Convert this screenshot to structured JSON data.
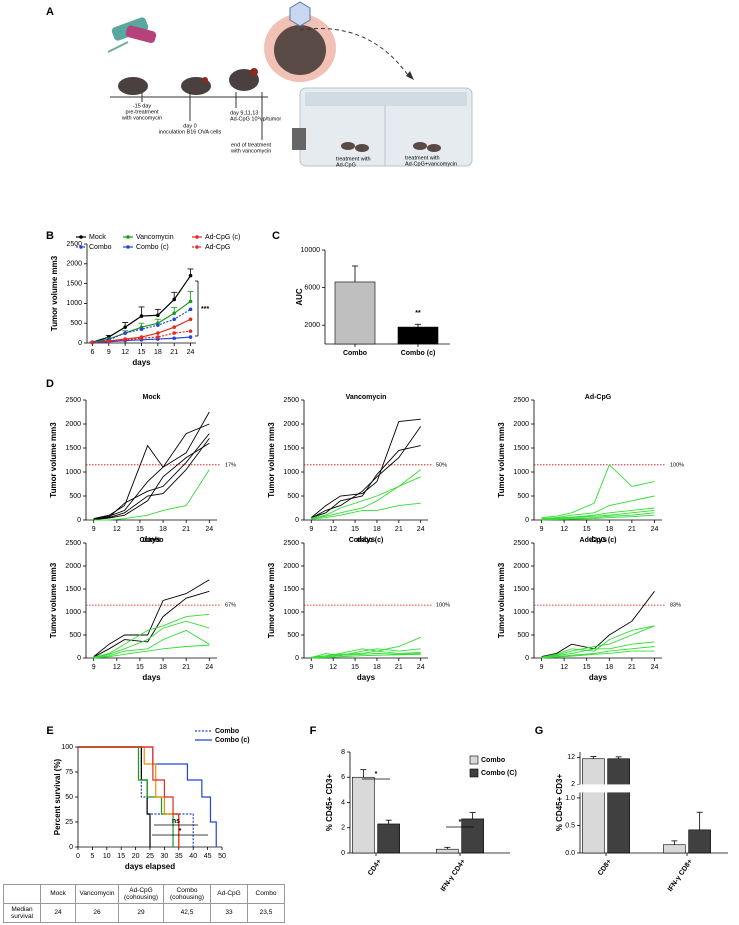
{
  "figure": {
    "panels": [
      "A",
      "B",
      "C",
      "D",
      "E",
      "F",
      "G"
    ],
    "schematic": [
      "-15 day",
      "pre-treatment",
      "with vancomycin",
      "day 0",
      "inoculation B16 OVA cells",
      "day 9,11,13",
      "Ad-CpG 10⁹vp/tumor",
      "end of treatment",
      "with vancomycin",
      "treatment with",
      "Ad-CpG",
      "treatment with",
      "Ad-CpG+vancomycin"
    ],
    "table": {
      "header": [
        "Mock",
        "Vancomycin",
        "Ad-CpG (cohousing)",
        "Combo (cohousing)",
        "Ad-CpG",
        "Combo"
      ],
      "rows": [
        [
          "Median survival",
          "24",
          "26",
          "29",
          "42,5",
          "33",
          "23,5"
        ]
      ]
    }
  },
  "chart_data": [
    {
      "type": "line",
      "x": [
        6,
        9,
        12,
        15,
        18,
        21,
        24
      ],
      "xlim": [
        5,
        25
      ],
      "xticks": [
        6,
        9,
        12,
        15,
        18,
        21,
        24
      ],
      "ylim": [
        0,
        2500
      ],
      "yticks": [
        0,
        500,
        1000,
        1500,
        2000,
        2500
      ],
      "y_label": "Tumor volume mm3",
      "x_label": "days",
      "markers": true,
      "legend": "top",
      "annotations": [
        "***"
      ],
      "series": [
        {
          "name": "Mock",
          "color": "#000000",
          "values": [
            20,
            150,
            400,
            680,
            700,
            1100,
            1700
          ],
          "errors": [
            5,
            40,
            120,
            230,
            150,
            180,
            170
          ]
        },
        {
          "name": "Vancomycin",
          "color": "#1a9a1a",
          "values": [
            20,
            100,
            250,
            400,
            500,
            750,
            1050
          ],
          "errors": [
            5,
            30,
            60,
            100,
            100,
            150,
            250
          ]
        },
        {
          "name": "Ad-CpG (c)",
          "color": "#e8281e",
          "values": [
            10,
            50,
            100,
            150,
            250,
            400,
            600
          ]
        },
        {
          "name": "Combo",
          "color": "#2244dd",
          "dash": true,
          "values": [
            10,
            80,
            250,
            350,
            450,
            600,
            850
          ]
        },
        {
          "name": "Combo (c)",
          "color": "#2244dd",
          "values": [
            10,
            30,
            60,
            80,
            100,
            120,
            150
          ]
        },
        {
          "name": "Ad-CpG",
          "color": "#e8281e",
          "dash": true,
          "values": [
            10,
            40,
            80,
            120,
            150,
            250,
            300
          ]
        }
      ]
    },
    {
      "type": "bar",
      "categories": [
        "Combo",
        "Combo (c)"
      ],
      "values": [
        6600,
        1800
      ],
      "errors": [
        1700,
        300
      ],
      "colors": [
        "#bfbfbf",
        "#000000"
      ],
      "ylim": [
        0,
        10000
      ],
      "yticks": [
        2000,
        6000,
        10000
      ],
      "y_label": "AUC",
      "annotations": [
        "**"
      ]
    },
    {
      "type": "line",
      "title": "Mock",
      "x": [
        9,
        11,
        13,
        16,
        18,
        21,
        24
      ],
      "xlim": [
        8,
        25
      ],
      "xticks": [
        9,
        12,
        15,
        18,
        21,
        24
      ],
      "ylim": [
        0,
        2500
      ],
      "yticks": [
        0,
        500,
        1000,
        1500,
        2000,
        2500
      ],
      "y_label": "Tumor volume mm3",
      "x_label": "days",
      "threshold": 1150,
      "annotations": [
        "17%"
      ],
      "series": [
        {
          "color": "#000000",
          "values": [
            30,
            100,
            300,
            1550,
            1100,
            1400,
            2250
          ]
        },
        {
          "color": "#000000",
          "values": [
            20,
            80,
            200,
            800,
            1100,
            1800,
            2000
          ]
        },
        {
          "color": "#000000",
          "values": [
            20,
            60,
            350,
            600,
            700,
            1200,
            1800
          ]
        },
        {
          "color": "#000000",
          "values": [
            10,
            50,
            150,
            500,
            550,
            1050,
            1700
          ]
        },
        {
          "color": "#000000",
          "values": [
            10,
            40,
            100,
            400,
            900,
            1300,
            1600
          ]
        },
        {
          "color": "#33dd33",
          "values": [
            0,
            0,
            30,
            100,
            200,
            300,
            1050
          ]
        }
      ]
    },
    {
      "type": "line",
      "title": "Vancomycin",
      "x": [
        9,
        11,
        13,
        16,
        18,
        21,
        24
      ],
      "xlim": [
        8,
        25
      ],
      "xticks": [
        9,
        12,
        15,
        18,
        21,
        24
      ],
      "ylim": [
        0,
        2500
      ],
      "yticks": [
        0,
        500,
        1000,
        1500,
        2000,
        2500
      ],
      "y_label": "Tumor volume mm3",
      "x_label": "days",
      "threshold": 1150,
      "annotations": [
        "50%"
      ],
      "series": [
        {
          "color": "#000000",
          "values": [
            50,
            300,
            500,
            550,
            800,
            2050,
            2100
          ]
        },
        {
          "color": "#000000",
          "values": [
            50,
            150,
            400,
            500,
            950,
            1450,
            1550
          ]
        },
        {
          "color": "#000000",
          "values": [
            40,
            200,
            300,
            600,
            900,
            1300,
            1950
          ]
        },
        {
          "color": "#33dd33",
          "values": [
            40,
            100,
            250,
            400,
            500,
            700,
            1050
          ]
        },
        {
          "color": "#33dd33",
          "values": [
            30,
            80,
            150,
            250,
            400,
            700,
            900
          ]
        },
        {
          "color": "#33dd33",
          "values": [
            20,
            50,
            100,
            200,
            200,
            300,
            350
          ]
        }
      ]
    },
    {
      "type": "line",
      "title": "Ad-CpG",
      "x": [
        9,
        11,
        13,
        16,
        18,
        21,
        24
      ],
      "xlim": [
        8,
        25
      ],
      "xticks": [
        9,
        12,
        15,
        18,
        21,
        24
      ],
      "ylim": [
        0,
        2500
      ],
      "yticks": [
        0,
        500,
        1000,
        1500,
        2000,
        2500
      ],
      "y_label": "Tumor volume mm3",
      "x_label": "days",
      "threshold": 1150,
      "annotations": [
        "100%"
      ],
      "series": [
        {
          "color": "#33dd33",
          "values": [
            50,
            80,
            150,
            350,
            1150,
            700,
            800
          ]
        },
        {
          "color": "#33dd33",
          "values": [
            30,
            50,
            100,
            150,
            300,
            400,
            500
          ]
        },
        {
          "color": "#33dd33",
          "values": [
            20,
            40,
            60,
            100,
            150,
            200,
            250
          ]
        },
        {
          "color": "#33dd33",
          "values": [
            10,
            30,
            50,
            80,
            100,
            150,
            200
          ]
        },
        {
          "color": "#33dd33",
          "values": [
            10,
            20,
            30,
            50,
            80,
            100,
            150
          ]
        },
        {
          "color": "#33dd33",
          "values": [
            0,
            10,
            20,
            30,
            50,
            70,
            100
          ]
        }
      ]
    },
    {
      "type": "line",
      "title": "Combo",
      "x": [
        9,
        11,
        13,
        16,
        18,
        21,
        24
      ],
      "xlim": [
        8,
        25
      ],
      "xticks": [
        9,
        12,
        15,
        18,
        21,
        24
      ],
      "ylim": [
        0,
        2500
      ],
      "yticks": [
        0,
        500,
        1000,
        1500,
        2000,
        2500
      ],
      "y_label": "Tumor volume mm3",
      "x_label": "days",
      "threshold": 1150,
      "annotations": [
        "67%"
      ],
      "series": [
        {
          "color": "#000000",
          "values": [
            30,
            300,
            500,
            500,
            1250,
            1400,
            1700
          ]
        },
        {
          "color": "#000000",
          "values": [
            20,
            200,
            400,
            350,
            900,
            1300,
            1450
          ]
        },
        {
          "color": "#33dd33",
          "values": [
            20,
            100,
            300,
            600,
            700,
            900,
            950
          ]
        },
        {
          "color": "#33dd33",
          "values": [
            10,
            80,
            200,
            400,
            650,
            800,
            650
          ]
        },
        {
          "color": "#33dd33",
          "values": [
            10,
            50,
            150,
            200,
            400,
            600,
            300
          ]
        },
        {
          "color": "#33dd33",
          "values": [
            0,
            30,
            80,
            150,
            200,
            250,
            280
          ]
        }
      ]
    },
    {
      "type": "line",
      "title": "Combo (c)",
      "x": [
        9,
        11,
        13,
        16,
        18,
        21,
        24
      ],
      "xlim": [
        8,
        25
      ],
      "xticks": [
        9,
        12,
        15,
        18,
        21,
        24
      ],
      "ylim": [
        0,
        2500
      ],
      "yticks": [
        0,
        500,
        1000,
        1500,
        2000,
        2500
      ],
      "y_label": "Tumor volume mm3",
      "x_label": "days",
      "threshold": 1150,
      "annotations": [
        "100%"
      ],
      "series": [
        {
          "color": "#33dd33",
          "values": [
            20,
            50,
            100,
            200,
            150,
            250,
            450
          ]
        },
        {
          "color": "#33dd33",
          "values": [
            10,
            100,
            50,
            150,
            200,
            150,
            200
          ]
        },
        {
          "color": "#33dd33",
          "values": [
            10,
            40,
            80,
            100,
            150,
            100,
            120
          ]
        },
        {
          "color": "#33dd33",
          "values": [
            0,
            20,
            60,
            80,
            100,
            80,
            100
          ]
        },
        {
          "color": "#33dd33",
          "values": [
            0,
            10,
            30,
            50,
            60,
            70,
            80
          ]
        }
      ]
    },
    {
      "type": "line",
      "title": "Ad-CpG (c)",
      "x": [
        9,
        11,
        13,
        16,
        18,
        21,
        24
      ],
      "xlim": [
        8,
        25
      ],
      "xticks": [
        9,
        12,
        15,
        18,
        21,
        24
      ],
      "ylim": [
        0,
        2500
      ],
      "yticks": [
        0,
        500,
        1000,
        1500,
        2000,
        2500
      ],
      "y_label": "Tumor volume mm3",
      "x_label": "days",
      "threshold": 1150,
      "annotations": [
        "83%"
      ],
      "series": [
        {
          "color": "#000000",
          "values": [
            30,
            100,
            300,
            200,
            500,
            800,
            1450
          ]
        },
        {
          "color": "#33dd33",
          "values": [
            20,
            80,
            200,
            150,
            400,
            600,
            700
          ]
        },
        {
          "color": "#33dd33",
          "values": [
            10,
            60,
            150,
            250,
            300,
            500,
            700
          ]
        },
        {
          "color": "#33dd33",
          "values": [
            10,
            50,
            100,
            200,
            200,
            300,
            350
          ]
        },
        {
          "color": "#33dd33",
          "values": [
            0,
            30,
            60,
            100,
            150,
            200,
            250
          ]
        },
        {
          "color": "#33dd33",
          "values": [
            0,
            20,
            40,
            80,
            100,
            150,
            150
          ]
        }
      ]
    },
    {
      "type": "step",
      "xlim": [
        0,
        50
      ],
      "xticks": [
        0,
        5,
        10,
        15,
        20,
        25,
        30,
        35,
        40,
        45,
        50
      ],
      "ylim": [
        0,
        100
      ],
      "yticks": [
        0,
        25,
        50,
        75,
        100
      ],
      "y_label": "Percent survival (%)",
      "x_label": "days elapsed",
      "legend": "upper right",
      "annotations": [
        "ns",
        "*"
      ],
      "series": [
        {
          "name": "Combo",
          "color": "#2244dd",
          "dash": true,
          "x": [
            0,
            22,
            24,
            40
          ],
          "values": [
            100,
            50,
            33,
            0
          ]
        },
        {
          "name": "Combo (c)",
          "color": "#2244dd",
          "x": [
            0,
            26,
            38,
            43,
            46,
            48
          ],
          "values": [
            100,
            83,
            67,
            50,
            25,
            0
          ]
        },
        {
          "color": "#000000",
          "x": [
            0,
            22,
            24,
            25
          ],
          "values": [
            100,
            67,
            33,
            0
          ]
        },
        {
          "color": "#1a9a1a",
          "x": [
            0,
            21,
            24,
            29,
            33
          ],
          "values": [
            100,
            67,
            50,
            33,
            0
          ]
        },
        {
          "color": "#f08c00",
          "x": [
            0,
            23,
            27,
            30,
            35
          ],
          "values": [
            100,
            83,
            50,
            33,
            0
          ]
        },
        {
          "color": "#e8281e",
          "x": [
            0,
            26,
            30,
            33,
            35
          ],
          "values": [
            100,
            67,
            50,
            33,
            0
          ]
        }
      ]
    },
    {
      "type": "bar",
      "categories": [
        "CD4+",
        "IFN-γ CD4+"
      ],
      "ylim": [
        0,
        8
      ],
      "yticks": [
        0,
        2,
        4,
        6,
        8
      ],
      "y_label": "% CD45+ CD3+",
      "legend": "upper right",
      "annotations": [
        "*",
        "*"
      ],
      "series": [
        {
          "name": "Combo",
          "color": "#d9d9d9",
          "values": [
            6.0,
            0.3
          ],
          "errors": [
            0.6,
            0.15
          ]
        },
        {
          "name": "Combo (C)",
          "color": "#404040",
          "values": [
            2.3,
            2.7
          ],
          "errors": [
            0.3,
            0.5
          ]
        }
      ]
    },
    {
      "type": "bar",
      "categories": [
        "CD8+",
        "IFN-γ CD8+"
      ],
      "ylim": [
        0,
        14
      ],
      "ybreak": [
        1.1,
        2
      ],
      "yticks": [
        {
          "value": 0,
          "label": "0.0"
        },
        {
          "value": 0.5,
          "label": "0.5"
        },
        {
          "value": 1,
          "label": "1.0"
        },
        2,
        12
      ],
      "y_label": "% CD45+ CD3+",
      "series": [
        {
          "color": "#d9d9d9",
          "values": [
            11.5,
            0.15
          ],
          "errors": [
            0.8,
            0.07
          ]
        },
        {
          "color": "#404040",
          "values": [
            11.5,
            0.42
          ],
          "errors": [
            0.7,
            0.32
          ]
        }
      ]
    }
  ]
}
